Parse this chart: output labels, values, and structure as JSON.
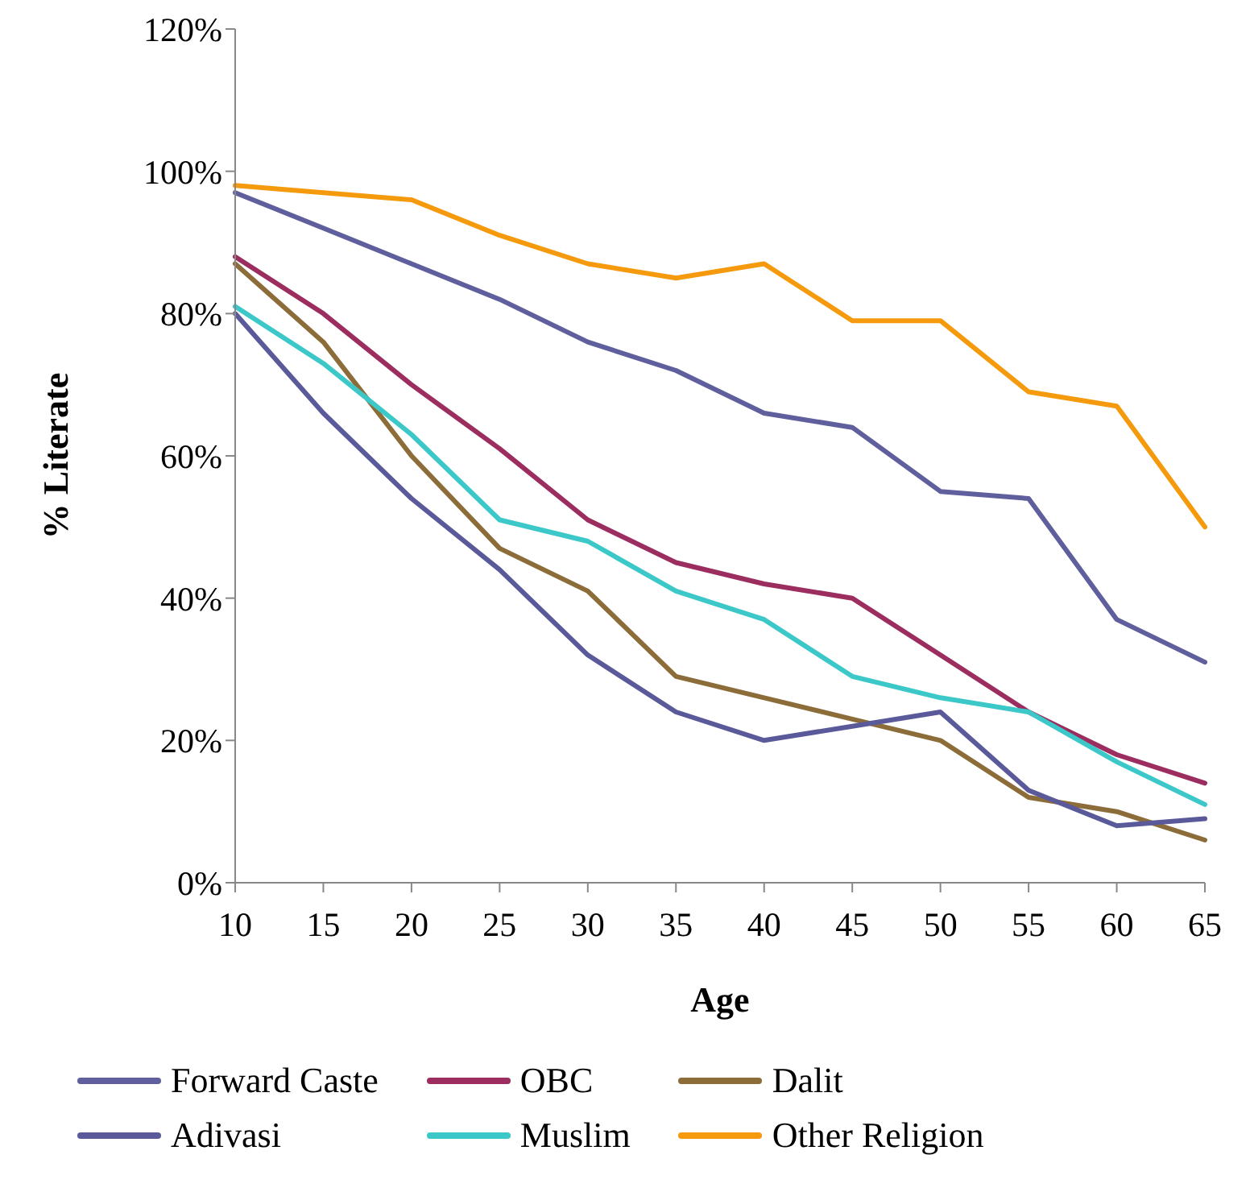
{
  "chart_data": {
    "type": "line",
    "xlabel": "Age",
    "ylabel": "% Literate",
    "categories": [
      "10",
      "15",
      "20",
      "25",
      "30",
      "35",
      "40",
      "45",
      "50",
      "55",
      "60",
      "65"
    ],
    "series": [
      {
        "name": "Forward Caste",
        "color": "#5f5f9e",
        "values": [
          97,
          92,
          87,
          82,
          76,
          72,
          66,
          64,
          55,
          54,
          37,
          31
        ]
      },
      {
        "name": "OBC",
        "color": "#9b2d5f",
        "values": [
          88,
          80,
          70,
          61,
          51,
          45,
          42,
          40,
          32,
          24,
          18,
          14
        ]
      },
      {
        "name": "Dalit",
        "color": "#8c6d3a",
        "values": [
          87,
          76,
          60,
          47,
          41,
          29,
          26,
          23,
          20,
          12,
          10,
          6
        ]
      },
      {
        "name": "Adivasi",
        "color": "#5a5a9a",
        "values": [
          80,
          66,
          54,
          44,
          32,
          24,
          20,
          22,
          24,
          13,
          8,
          9
        ]
      },
      {
        "name": "Muslim",
        "color": "#3cc8c8",
        "values": [
          81,
          73,
          63,
          51,
          48,
          41,
          37,
          29,
          26,
          24,
          17,
          11
        ]
      },
      {
        "name": "Other Religion",
        "color": "#f59a0c",
        "values": [
          98,
          97,
          96,
          91,
          87,
          85,
          87,
          79,
          79,
          69,
          67,
          50
        ]
      }
    ],
    "ylim": [
      0,
      120
    ],
    "yticks": [
      {
        "value": 0,
        "label": "0%"
      },
      {
        "value": 20,
        "label": "20%"
      },
      {
        "value": 40,
        "label": "40%"
      },
      {
        "value": 60,
        "label": "60%"
      },
      {
        "value": 80,
        "label": "80%"
      },
      {
        "value": 100,
        "label": "100%"
      },
      {
        "value": 120,
        "label": "120%"
      }
    ],
    "grid": false,
    "legend": "bottom",
    "marker": "none",
    "line_style": "solid"
  }
}
